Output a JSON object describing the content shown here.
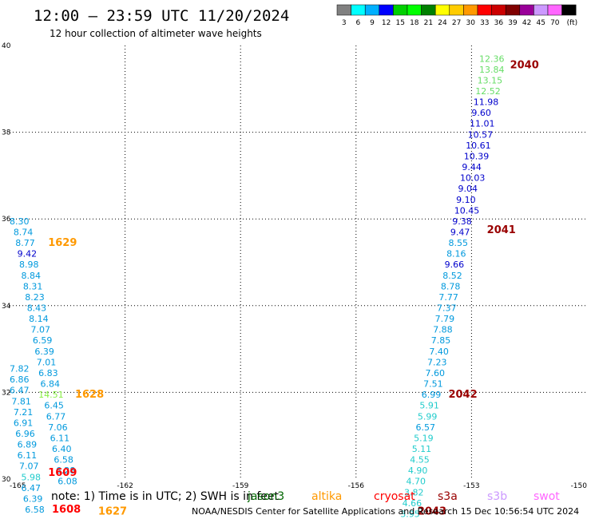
{
  "header": {
    "title": "12:00 – 23:59 UTC 11/20/2024",
    "subtitle": "12 hour collection of altimeter wave heights"
  },
  "legend": {
    "colors": [
      "#808080",
      "#00ffff",
      "#00b0ff",
      "#0000ff",
      "#00d000",
      "#00ff00",
      "#008000",
      "#ffff00",
      "#ffcc00",
      "#ff9900",
      "#ff0000",
      "#cc0000",
      "#800000",
      "#990099",
      "#cc99ff",
      "#ff66ff",
      "#000000"
    ],
    "labels": [
      "3",
      "6",
      "9",
      "12",
      "15",
      "18",
      "21",
      "24",
      "27",
      "30",
      "33",
      "36",
      "39",
      "42",
      "45",
      "70",
      "(ft)"
    ]
  },
  "footer": {
    "note": "note:  1) Time is in UTC; 2) SWH is in feet",
    "satellites": [
      {
        "name": "jason3",
        "color": "#006600"
      },
      {
        "name": "altika",
        "color": "#ff9900"
      },
      {
        "name": "cryosat",
        "color": "#ff0000"
      },
      {
        "name": "s3a",
        "color": "#990000"
      },
      {
        "name": "s3b",
        "color": "#cc99ff"
      },
      {
        "name": "swot",
        "color": "#ff66ff"
      }
    ],
    "credit": "NOAA/NESDIS Center for Satellite Applications and Research    15 Dec 10:56:54 UTC 2024"
  },
  "chart_data": {
    "type": "scatter",
    "title": "12:00 – 23:59 UTC 11/20/2024",
    "subtitle": "12 hour collection of altimeter wave heights",
    "xlim": [
      -165,
      -150
    ],
    "ylim": [
      30,
      40
    ],
    "x_ticks": [
      "-165",
      "-162",
      "-159",
      "-156",
      "-153",
      "-150"
    ],
    "y_ticks": [
      "30",
      "32",
      "34",
      "36",
      "38",
      "40"
    ],
    "grid": "dotted",
    "tracks": [
      {
        "values": [
          {
            "lat": 39.7,
            "lon": -152.8,
            "swh": "12.36",
            "color": "#66dd66"
          },
          {
            "lat": 39.45,
            "lon": -152.8,
            "swh": "13.84",
            "color": "#66dd66"
          },
          {
            "lat": 39.2,
            "lon": -152.85,
            "swh": "13.15",
            "color": "#66dd66"
          },
          {
            "lat": 38.95,
            "lon": -152.9,
            "swh": "12.52",
            "color": "#66dd66"
          },
          {
            "lat": 38.7,
            "lon": -152.95,
            "swh": "11.98",
            "color": "#0000cc"
          },
          {
            "lat": 38.45,
            "lon": -153.0,
            "swh": "9.60",
            "color": "#0000cc"
          },
          {
            "lat": 38.2,
            "lon": -153.05,
            "swh": "11.01",
            "color": "#0000cc"
          },
          {
            "lat": 37.95,
            "lon": -153.1,
            "swh": "10.57",
            "color": "#0000cc"
          },
          {
            "lat": 37.7,
            "lon": -153.15,
            "swh": "10.61",
            "color": "#0000cc"
          },
          {
            "lat": 37.45,
            "lon": -153.2,
            "swh": "10.39",
            "color": "#0000cc"
          },
          {
            "lat": 37.2,
            "lon": -153.25,
            "swh": "9.44",
            "color": "#0000cc"
          },
          {
            "lat": 36.95,
            "lon": -153.3,
            "swh": "10.03",
            "color": "#0000cc"
          },
          {
            "lat": 36.7,
            "lon": -153.35,
            "swh": "9.04",
            "color": "#0000cc"
          },
          {
            "lat": 36.45,
            "lon": -153.4,
            "swh": "9.10",
            "color": "#0000cc"
          },
          {
            "lat": 36.2,
            "lon": -153.45,
            "swh": "10.45",
            "color": "#0000cc"
          },
          {
            "lat": 35.95,
            "lon": -153.5,
            "swh": "9.38",
            "color": "#0000cc"
          },
          {
            "lat": 35.7,
            "lon": -153.55,
            "swh": "9.47",
            "color": "#0000cc"
          },
          {
            "lat": 35.45,
            "lon": -153.6,
            "swh": "8.55",
            "color": "#0099dd"
          },
          {
            "lat": 35.2,
            "lon": -153.65,
            "swh": "8.16",
            "color": "#0099dd"
          },
          {
            "lat": 34.95,
            "lon": -153.7,
            "swh": "9.66",
            "color": "#0000cc"
          },
          {
            "lat": 34.7,
            "lon": -153.75,
            "swh": "8.52",
            "color": "#0099dd"
          },
          {
            "lat": 34.45,
            "lon": -153.8,
            "swh": "8.78",
            "color": "#0099dd"
          },
          {
            "lat": 34.2,
            "lon": -153.85,
            "swh": "7.77",
            "color": "#0099dd"
          },
          {
            "lat": 33.95,
            "lon": -153.9,
            "swh": "7.37",
            "color": "#0099dd"
          },
          {
            "lat": 33.7,
            "lon": -153.95,
            "swh": "7.79",
            "color": "#0099dd"
          },
          {
            "lat": 33.45,
            "lon": -154.0,
            "swh": "7.88",
            "color": "#0099dd"
          },
          {
            "lat": 33.2,
            "lon": -154.05,
            "swh": "7.85",
            "color": "#0099dd"
          },
          {
            "lat": 32.95,
            "lon": -154.1,
            "swh": "7.40",
            "color": "#0099dd"
          },
          {
            "lat": 32.7,
            "lon": -154.15,
            "swh": "7.23",
            "color": "#0099dd"
          },
          {
            "lat": 32.45,
            "lon": -154.2,
            "swh": "7.60",
            "color": "#0099dd"
          },
          {
            "lat": 32.2,
            "lon": -154.25,
            "swh": "7.51",
            "color": "#0099dd"
          },
          {
            "lat": 31.95,
            "lon": -154.3,
            "swh": "6.99",
            "color": "#0099dd"
          },
          {
            "lat": 31.7,
            "lon": -154.35,
            "swh": "5.91",
            "color": "#22cccc"
          },
          {
            "lat": 31.45,
            "lon": -154.4,
            "swh": "5.99",
            "color": "#22cccc"
          },
          {
            "lat": 31.2,
            "lon": -154.45,
            "swh": "6.57",
            "color": "#0099dd"
          },
          {
            "lat": 30.95,
            "lon": -154.5,
            "swh": "5.19",
            "color": "#22cccc"
          },
          {
            "lat": 30.7,
            "lon": -154.55,
            "swh": "5.11",
            "color": "#22cccc"
          },
          {
            "lat": 30.45,
            "lon": -154.6,
            "swh": "4.55",
            "color": "#22cccc"
          },
          {
            "lat": 30.2,
            "lon": -154.65,
            "swh": "4.90",
            "color": "#22cccc"
          },
          {
            "lat": 29.95,
            "lon": -154.7,
            "swh": "4.70",
            "color": "#22cccc"
          },
          {
            "lat": 29.7,
            "lon": -154.75,
            "swh": "3.82",
            "color": "#22cccc"
          },
          {
            "lat": 29.45,
            "lon": -154.8,
            "swh": "4.66",
            "color": "#22cccc"
          },
          {
            "lat": 29.2,
            "lon": -154.85,
            "swh": "3.95",
            "color": "#22cccc"
          }
        ]
      },
      {
        "values": [
          {
            "lat": 35.95,
            "lon": -165.0,
            "swh": "8.30",
            "color": "#0099dd"
          },
          {
            "lat": 35.7,
            "lon": -164.9,
            "swh": "8.74",
            "color": "#0099dd"
          },
          {
            "lat": 35.45,
            "lon": -164.85,
            "swh": "8.77",
            "color": "#0099dd"
          },
          {
            "lat": 35.2,
            "lon": -164.8,
            "swh": "9.42",
            "color": "#0000cc"
          },
          {
            "lat": 34.95,
            "lon": -164.75,
            "swh": "8.98",
            "color": "#0099dd"
          },
          {
            "lat": 34.7,
            "lon": -164.7,
            "swh": "8.84",
            "color": "#0099dd"
          },
          {
            "lat": 34.45,
            "lon": -164.65,
            "swh": "8.31",
            "color": "#0099dd"
          },
          {
            "lat": 34.2,
            "lon": -164.6,
            "swh": "8.23",
            "color": "#0099dd"
          },
          {
            "lat": 33.95,
            "lon": -164.55,
            "swh": "8.43",
            "color": "#0099dd"
          },
          {
            "lat": 33.7,
            "lon": -164.5,
            "swh": "8.14",
            "color": "#0099dd"
          },
          {
            "lat": 33.45,
            "lon": -164.45,
            "swh": "7.07",
            "color": "#0099dd"
          },
          {
            "lat": 33.2,
            "lon": -164.4,
            "swh": "6.59",
            "color": "#0099dd"
          },
          {
            "lat": 32.95,
            "lon": -164.35,
            "swh": "6.39",
            "color": "#0099dd"
          },
          {
            "lat": 32.7,
            "lon": -164.3,
            "swh": "7.01",
            "color": "#0099dd"
          },
          {
            "lat": 32.45,
            "lon": -164.25,
            "swh": "6.83",
            "color": "#0099dd"
          },
          {
            "lat": 32.2,
            "lon": -164.2,
            "swh": "6.84",
            "color": "#0099dd"
          },
          {
            "lat": 31.95,
            "lon": -164.25,
            "swh": "14.51",
            "color": "#88ee44"
          },
          {
            "lat": 31.7,
            "lon": -164.1,
            "swh": "6.45",
            "color": "#0099dd"
          },
          {
            "lat": 31.45,
            "lon": -164.05,
            "swh": "6.77",
            "color": "#0099dd"
          },
          {
            "lat": 31.2,
            "lon": -164.0,
            "swh": "7.06",
            "color": "#0099dd"
          },
          {
            "lat": 30.95,
            "lon": -163.95,
            "swh": "6.11",
            "color": "#0099dd"
          },
          {
            "lat": 30.7,
            "lon": -163.9,
            "swh": "6.40",
            "color": "#0099dd"
          },
          {
            "lat": 30.45,
            "lon": -163.85,
            "swh": "6.58",
            "color": "#0099dd"
          },
          {
            "lat": 30.2,
            "lon": -163.8,
            "swh": "6.28",
            "color": "#0099dd"
          },
          {
            "lat": 29.95,
            "lon": -163.75,
            "swh": "6.08",
            "color": "#0099dd"
          }
        ]
      },
      {
        "values": [
          {
            "lat": 32.55,
            "lon": -165.0,
            "swh": "7.82",
            "color": "#0099dd"
          },
          {
            "lat": 32.3,
            "lon": -165.0,
            "swh": "6.86",
            "color": "#0099dd"
          },
          {
            "lat": 32.05,
            "lon": -165.0,
            "swh": "6.47",
            "color": "#0099dd"
          },
          {
            "lat": 31.8,
            "lon": -164.95,
            "swh": "7.81",
            "color": "#0099dd"
          },
          {
            "lat": 31.55,
            "lon": -164.9,
            "swh": "7.21",
            "color": "#0099dd"
          },
          {
            "lat": 31.3,
            "lon": -164.9,
            "swh": "6.91",
            "color": "#0099dd"
          },
          {
            "lat": 31.05,
            "lon": -164.85,
            "swh": "6.96",
            "color": "#0099dd"
          },
          {
            "lat": 30.8,
            "lon": -164.8,
            "swh": "6.89",
            "color": "#0099dd"
          },
          {
            "lat": 30.55,
            "lon": -164.8,
            "swh": "6.11",
            "color": "#0099dd"
          },
          {
            "lat": 30.3,
            "lon": -164.75,
            "swh": "7.07",
            "color": "#0099dd"
          },
          {
            "lat": 30.05,
            "lon": -164.7,
            "swh": "5.98",
            "color": "#22cccc"
          },
          {
            "lat": 29.8,
            "lon": -164.7,
            "swh": "6.47",
            "color": "#0099dd"
          },
          {
            "lat": 29.55,
            "lon": -164.65,
            "swh": "6.39",
            "color": "#0099dd"
          },
          {
            "lat": 29.3,
            "lon": -164.6,
            "swh": "6.58",
            "color": "#0099dd"
          }
        ]
      }
    ],
    "pass_labels": [
      {
        "text": "2040",
        "lat": 39.55,
        "lon": -152.0,
        "color": "#990000"
      },
      {
        "text": "2041",
        "lat": 35.75,
        "lon": -152.6,
        "color": "#990000"
      },
      {
        "text": "2042",
        "lat": 31.95,
        "lon": -153.6,
        "color": "#990000"
      },
      {
        "text": "2043",
        "lat": 29.25,
        "lon": -154.4,
        "color": "#990000"
      },
      {
        "text": "1629",
        "lat": 35.45,
        "lon": -164.0,
        "color": "#ff9900"
      },
      {
        "text": "1628",
        "lat": 31.95,
        "lon": -163.3,
        "color": "#ff9900"
      },
      {
        "text": "1627",
        "lat": 29.25,
        "lon": -162.7,
        "color": "#ff9900"
      },
      {
        "text": "1609",
        "lat": 30.15,
        "lon": -164.0,
        "color": "#ff0000"
      },
      {
        "text": "1608",
        "lat": 29.3,
        "lon": -163.9,
        "color": "#ff0000"
      }
    ]
  }
}
